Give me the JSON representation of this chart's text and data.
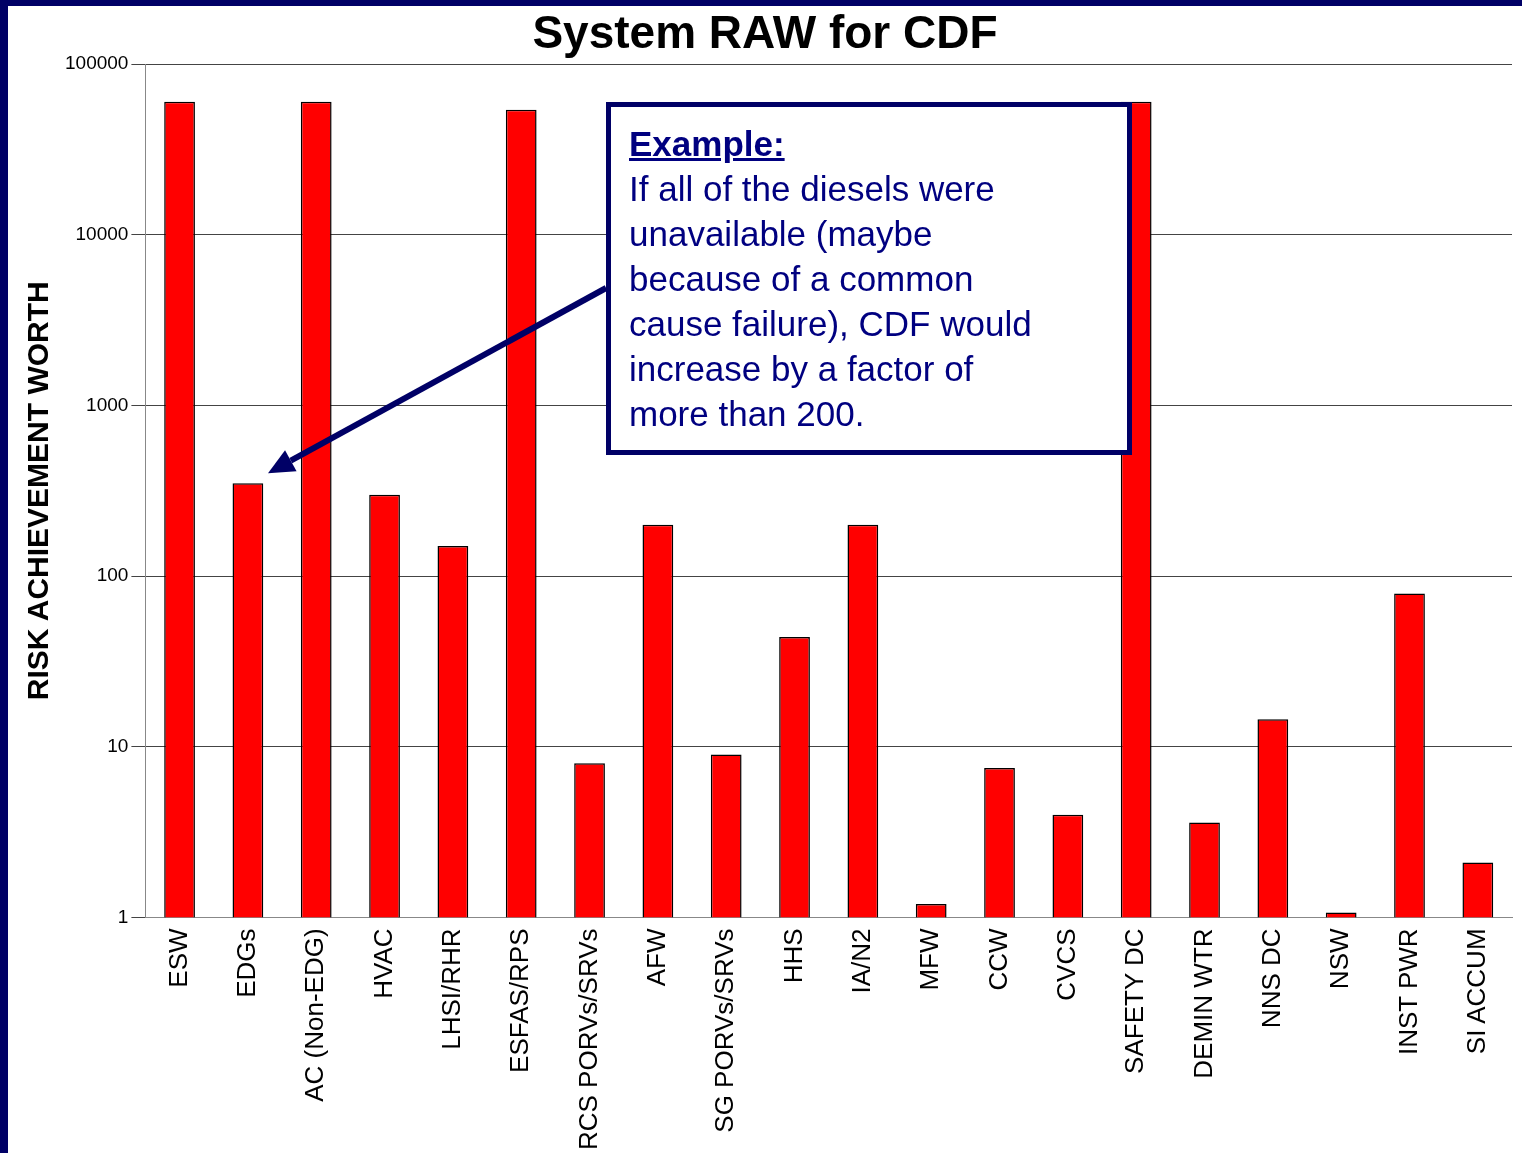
{
  "chart_data": {
    "type": "bar",
    "title": "System RAW for CDF",
    "ylabel": "RISK ACHIEVEMENT WORTH",
    "categories": [
      "ESW",
      "EDGs",
      "AC (Non-EDG)",
      "HVAC",
      "LHSI/RHR",
      "ESFAS/RPS",
      "RCS PORVs/SRVs",
      "AFW",
      "SG PORVs/SRVs",
      "HHS",
      "IA/N2",
      "MFW",
      "CCW",
      "CVCS",
      "SAFETY DC",
      "DEMIN WTR",
      "NNS DC",
      "NSW",
      "INST PWR",
      "SI ACCUM"
    ],
    "values": [
      60000,
      350,
      60000,
      300,
      150,
      54000,
      8,
      200,
      9,
      44,
      200,
      1.2,
      7.5,
      4,
      60000,
      3.6,
      14.5,
      1.07,
      79,
      2.1
    ],
    "color": "#ff0000",
    "log": "y",
    "ylim": [
      1,
      100000
    ],
    "yticks": [
      1,
      10,
      100,
      1000,
      10000,
      100000
    ],
    "grid": "y",
    "legend": false,
    "annotations": [
      "Example:\nIf all of the diesels were\nunavailable (maybe\nbecause of a common\ncause failure), CDF would\nincrease by a factor of\nmore than 200."
    ]
  }
}
